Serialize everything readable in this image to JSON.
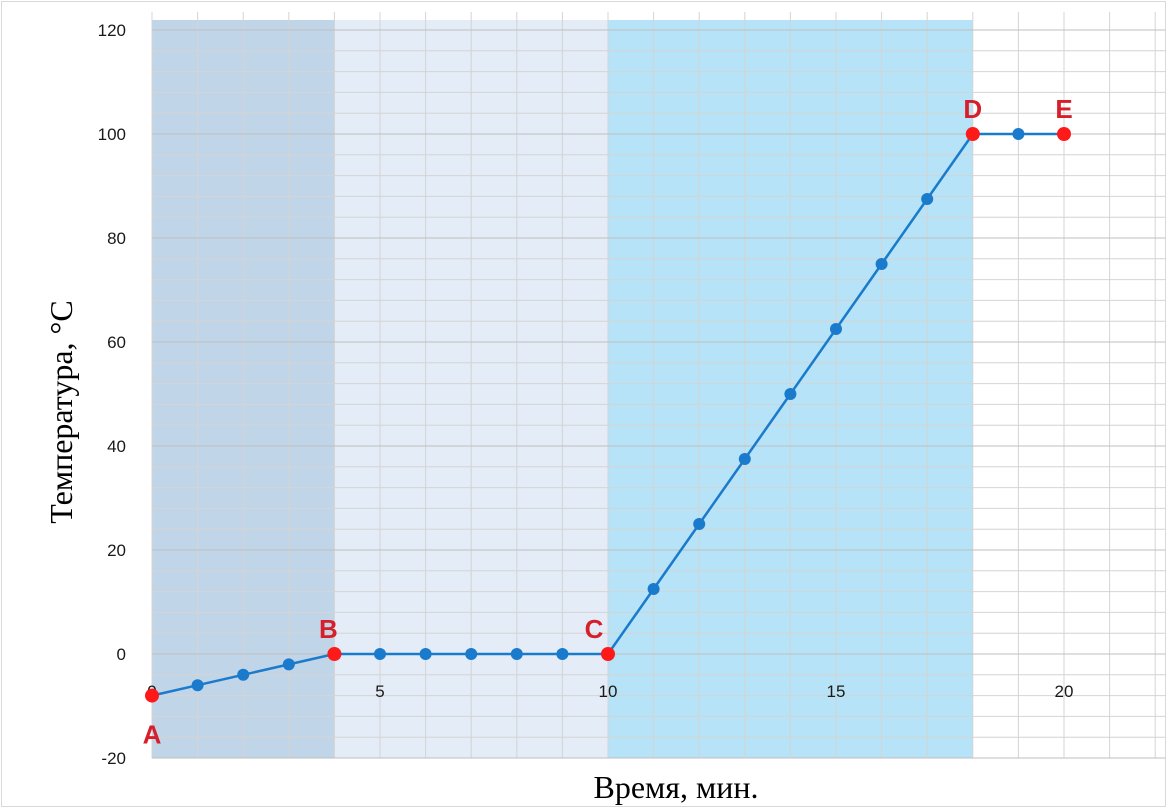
{
  "chart_data": {
    "type": "line",
    "title": "",
    "xlabel": "Время, мин.",
    "ylabel": "Температура, °C",
    "xlim": [
      0,
      22
    ],
    "ylim": [
      -20,
      120
    ],
    "x_major_ticks": [
      0,
      5,
      10,
      15,
      20
    ],
    "y_major_ticks": [
      -20,
      0,
      20,
      40,
      60,
      80,
      100,
      120
    ],
    "x_tick_labels": [
      "0",
      "5",
      "10",
      "15",
      "20"
    ],
    "y_tick_labels": [
      "-20",
      "0",
      "20",
      "40",
      "60",
      "80",
      "100",
      "120"
    ],
    "grid": true,
    "series": [
      {
        "x": [
          0,
          1,
          2,
          3,
          4,
          5,
          6,
          7,
          8,
          9,
          10,
          11,
          12,
          13,
          14,
          15,
          16,
          17,
          18,
          19,
          20
        ],
        "y": [
          -8,
          -6,
          -4,
          -2,
          0,
          0,
          0,
          0,
          0,
          0,
          0,
          12.5,
          25,
          37.5,
          50,
          62.5,
          75,
          87.5,
          100,
          100,
          100
        ],
        "color": "#1a7acc"
      }
    ],
    "highlighted_points": [
      {
        "label": "A",
        "x": 0,
        "y": -8
      },
      {
        "label": "B",
        "x": 4,
        "y": 0
      },
      {
        "label": "C",
        "x": 10,
        "y": 0
      },
      {
        "label": "D",
        "x": 18,
        "y": 100
      },
      {
        "label": "E",
        "x": 20,
        "y": 100
      }
    ],
    "bands": [
      {
        "from": 0,
        "to": 4,
        "color": "#c1d5e9"
      },
      {
        "from": 4,
        "to": 10,
        "color": "#e3ecf7"
      },
      {
        "from": 10,
        "to": 18,
        "color": "#b6e3f7"
      }
    ]
  },
  "colors": {
    "line": "#1a7acc",
    "marker": "#1a7acc",
    "highlight": "#ff1a1a",
    "label": "#d61f2b",
    "grid": "#d4d4d4"
  }
}
